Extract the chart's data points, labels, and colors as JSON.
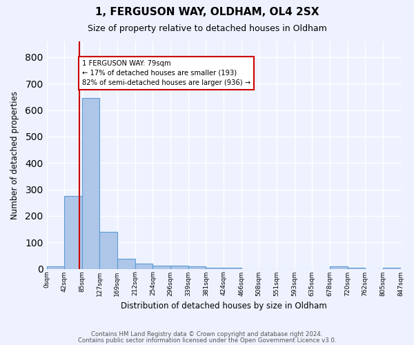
{
  "title1": "1, FERGUSON WAY, OLDHAM, OL4 2SX",
  "title2": "Size of property relative to detached houses in Oldham",
  "xlabel": "Distribution of detached houses by size in Oldham",
  "ylabel": "Number of detached properties",
  "bin_labels": [
    "0sqm",
    "42sqm",
    "85sqm",
    "127sqm",
    "169sqm",
    "212sqm",
    "254sqm",
    "296sqm",
    "339sqm",
    "381sqm",
    "424sqm",
    "466sqm",
    "508sqm",
    "551sqm",
    "593sqm",
    "635sqm",
    "678sqm",
    "720sqm",
    "762sqm",
    "805sqm",
    "847sqm"
  ],
  "bin_edges": [
    0,
    42,
    85,
    127,
    169,
    212,
    254,
    296,
    339,
    381,
    424,
    466,
    508,
    551,
    593,
    635,
    678,
    720,
    762,
    805,
    847
  ],
  "bar_heights": [
    8,
    275,
    645,
    140,
    37,
    20,
    13,
    11,
    8,
    5,
    5,
    0,
    0,
    0,
    0,
    0,
    8,
    5,
    0,
    4
  ],
  "bar_color": "#aec6e8",
  "bar_edge_color": "#5b9bd5",
  "property_size": 79,
  "vline_color": "#cc0000",
  "annotation_text": "1 FERGUSON WAY: 79sqm\n← 17% of detached houses are smaller (193)\n82% of semi-detached houses are larger (936) →",
  "annotation_box_color": "#ffffff",
  "annotation_box_edge": "#cc0000",
  "ylim": [
    0,
    860
  ],
  "background_color": "#eef2ff",
  "grid_color": "#ffffff",
  "footer1": "Contains HM Land Registry data © Crown copyright and database right 2024.",
  "footer2": "Contains public sector information licensed under the Open Government Licence v3.0."
}
